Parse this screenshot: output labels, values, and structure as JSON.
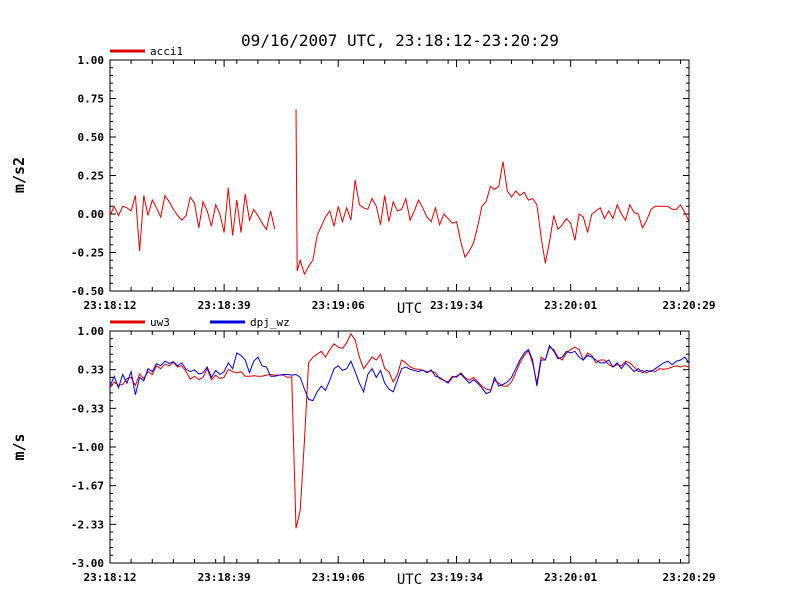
{
  "chart_data": [
    {
      "type": "line",
      "title": "09/16/2007  UTC, 23:18:12-23:20:29",
      "xlabel": "UTC",
      "ylabel": "m/s2",
      "xlim": [
        "23:18:12",
        "23:20:29"
      ],
      "ylim": [
        -0.5,
        1.0
      ],
      "yticks": [
        "1.00",
        "0.75",
        "0.50",
        "0.25",
        "0.00",
        "-0.25",
        "-0.50"
      ],
      "xticks": [
        "23:18:12",
        "23:18:39",
        "23:19:06",
        "23:19:34",
        "23:20:01",
        "23:20:29"
      ],
      "grid": false,
      "legend_position": "top-left",
      "series": [
        {
          "name": "acci1",
          "color": "#e00000",
          "segments": [
            {
              "x": [
                0,
                1,
                2,
                3,
                4,
                5,
                6,
                7,
                8,
                9,
                10,
                11,
                12,
                13,
                14,
                15,
                16,
                17,
                18,
                19,
                20,
                21,
                22,
                23,
                24,
                25,
                26,
                27,
                28,
                29,
                30,
                31,
                32,
                33,
                34,
                35,
                36,
                37,
                38,
                39
              ],
              "y": [
                -0.01,
                0.05,
                -0.01,
                0.05,
                0.04,
                0.02,
                0.12,
                -0.24,
                0.12,
                -0.01,
                0.09,
                0.04,
                -0.02,
                0.12,
                0.08,
                0.03,
                -0.01,
                -0.04,
                -0.01,
                0.11,
                0.07,
                -0.09,
                0.08,
                0.02,
                -0.08,
                0.06,
                0.0,
                -0.12,
                0.17,
                -0.14,
                0.09,
                -0.12,
                0.13,
                -0.04,
                0.03,
                -0.01,
                -0.06,
                -0.1,
                0.02,
                -0.1
              ]
            },
            {
              "x": [
                44,
                44.3,
                45,
                46,
                47,
                48,
                49,
                50,
                51,
                52,
                53,
                54,
                55,
                56,
                57,
                58,
                59,
                60,
                61,
                62,
                63,
                64,
                65,
                66,
                67,
                68,
                69,
                70,
                71,
                72,
                73,
                74,
                75,
                76,
                77,
                78,
                79,
                80,
                81,
                82,
                83,
                84,
                85,
                86,
                87,
                88,
                89,
                90,
                91,
                92,
                93,
                94,
                95,
                96,
                97,
                98,
                99,
                100,
                101,
                102,
                103,
                104,
                105,
                106,
                107,
                108,
                109,
                110,
                111,
                112,
                113,
                114,
                115,
                116,
                117,
                118,
                119,
                120,
                121,
                122,
                123,
                124,
                125,
                126,
                127,
                128,
                129,
                130,
                131,
                132,
                133,
                134,
                135,
                136,
                137
              ],
              "y": [
                0.68,
                -0.37,
                -0.3,
                -0.39,
                -0.34,
                -0.3,
                -0.14,
                -0.08,
                -0.02,
                0.02,
                -0.08,
                0.05,
                -0.05,
                0.04,
                -0.04,
                0.22,
                0.06,
                0.04,
                0.03,
                0.1,
                0.05,
                -0.07,
                0.12,
                -0.05,
                0.08,
                0.02,
                0.03,
                0.1,
                -0.04,
                0.02,
                0.09,
                0.04,
                -0.02,
                -0.05,
                0.04,
                -0.07,
                0.0,
                -0.03,
                -0.06,
                -0.05,
                -0.18,
                -0.28,
                -0.24,
                -0.19,
                -0.08,
                0.05,
                0.08,
                0.18,
                0.16,
                0.18,
                0.34,
                0.15,
                0.11,
                0.15,
                0.12,
                0.14,
                0.09,
                0.1,
                0.06,
                -0.15,
                -0.32,
                -0.18,
                -0.01,
                -0.1,
                -0.07,
                -0.03,
                -0.06,
                -0.17,
                0.0,
                -0.02,
                -0.12,
                0.0,
                0.02,
                0.04,
                -0.03,
                0.02,
                -0.03,
                0.06,
                0.0,
                -0.04,
                0.06,
                0.01,
                0.0,
                -0.09,
                -0.04,
                0.03,
                0.05,
                0.05,
                0.05,
                0.05,
                0.03,
                0.03,
                0.06,
                0.01,
                -0.05
              ]
            }
          ]
        }
      ]
    },
    {
      "type": "line",
      "xlabel": "UTC",
      "ylabel": "m/s",
      "xlim": [
        "23:18:12",
        "23:20:29"
      ],
      "ylim": [
        -3.0,
        1.0
      ],
      "yticks": [
        "1.00",
        "0.33",
        "-0.33",
        "-1.00",
        "-1.67",
        "-2.33",
        "-3.00"
      ],
      "xticks": [
        "23:18:12",
        "23:18:39",
        "23:19:06",
        "23:19:34",
        "23:20:01",
        "23:20:29"
      ],
      "grid": false,
      "legend_position": "top-left",
      "series": [
        {
          "name": "uw3",
          "color": "#e00000",
          "segments": [
            {
              "x": [
                0,
                1,
                2,
                3,
                4,
                5,
                6,
                7,
                8,
                9,
                10,
                11,
                12,
                13,
                14,
                15,
                16,
                17,
                18,
                19,
                20,
                21,
                22,
                23,
                24,
                25,
                26,
                27,
                28,
                29,
                30,
                31,
                32,
                33,
                34,
                35,
                36,
                37,
                38,
                39,
                40,
                41,
                42,
                43,
                44,
                45,
                46,
                47,
                48,
                49,
                50,
                51,
                52,
                53,
                54,
                55,
                56,
                57,
                58,
                59,
                60,
                61,
                62,
                63,
                64,
                65,
                66,
                67,
                68,
                69,
                70,
                71,
                72,
                73,
                74,
                75,
                76,
                77,
                78,
                79,
                80,
                81,
                82,
                83,
                84,
                85,
                86,
                87,
                88,
                89,
                90,
                91,
                92,
                93,
                94,
                95,
                96,
                97,
                98,
                99,
                100,
                101,
                102,
                103,
                104,
                105,
                106,
                107,
                108,
                109,
                110,
                111,
                112,
                113,
                114,
                115,
                116,
                117,
                118,
                119,
                120,
                121,
                122,
                123,
                124,
                125,
                126,
                127,
                128,
                129,
                130,
                131,
                132,
                133,
                134,
                135,
                136,
                137
              ],
              "y": [
                0.02,
                0.12,
                0.06,
                0.08,
                0.18,
                0.2,
                0.06,
                0.26,
                0.18,
                0.3,
                0.25,
                0.4,
                0.35,
                0.43,
                0.4,
                0.46,
                0.38,
                0.4,
                0.3,
                0.17,
                0.22,
                0.16,
                0.2,
                0.35,
                0.16,
                0.24,
                0.18,
                0.2,
                0.34,
                0.3,
                0.28,
                0.3,
                0.22,
                0.22,
                0.23,
                0.22,
                0.22,
                0.24,
                0.25,
                0.24,
                0.24,
                0.24,
                0.2,
                0.21,
                -2.4,
                -2.1,
                -0.9,
                0.45,
                0.55,
                0.6,
                0.65,
                0.55,
                0.68,
                0.78,
                0.72,
                0.7,
                0.8,
                0.95,
                0.85,
                0.55,
                0.35,
                0.45,
                0.55,
                0.5,
                0.6,
                0.35,
                0.3,
                0.12,
                0.25,
                0.5,
                0.45,
                0.38,
                0.35,
                0.34,
                0.32,
                0.3,
                0.31,
                0.28,
                0.18,
                0.15,
                0.12,
                0.22,
                0.2,
                0.28,
                0.2,
                0.15,
                0.2,
                0.13,
                0.05,
                0.0,
                -0.02,
                0.15,
                0.1,
                0.05,
                0.05,
                0.12,
                0.28,
                0.45,
                0.58,
                0.66,
                0.45,
                0.1,
                0.55,
                0.5,
                0.72,
                0.68,
                0.55,
                0.5,
                0.62,
                0.68,
                0.72,
                0.68,
                0.5,
                0.62,
                0.58,
                0.45,
                0.5,
                0.5,
                0.42,
                0.38,
                0.42,
                0.4,
                0.48,
                0.45,
                0.38,
                0.3,
                0.32,
                0.28,
                0.32,
                0.3,
                0.35,
                0.34,
                0.35,
                0.38,
                0.4,
                0.38,
                0.4,
                0.38
              ]
            }
          ]
        },
        {
          "name": "dpj_wz",
          "color": "#0000e0",
          "segments": [
            {
              "x": [
                0,
                1,
                2,
                3,
                4,
                5,
                6,
                7,
                8,
                9,
                10,
                11,
                12,
                13,
                14,
                15,
                16,
                17,
                18,
                19,
                20,
                21,
                22,
                23,
                24,
                25,
                26,
                27,
                28,
                29,
                30,
                31,
                32,
                33,
                34,
                35,
                36,
                37,
                38,
                39,
                40,
                41,
                42,
                43,
                44,
                45,
                46,
                47,
                48,
                49,
                50,
                51,
                52,
                53,
                54,
                55,
                56,
                57,
                58,
                59,
                60,
                61,
                62,
                63,
                64,
                65,
                66,
                67,
                68,
                69,
                70,
                71,
                72,
                73,
                74,
                75,
                76,
                77,
                78,
                79,
                80,
                81,
                82,
                83,
                84,
                85,
                86,
                87,
                88,
                89,
                90,
                91,
                92,
                93,
                94,
                95,
                96,
                97,
                98,
                99,
                100,
                101,
                102,
                103,
                104,
                105,
                106,
                107,
                108,
                109,
                110,
                111,
                112,
                113,
                114,
                115,
                116,
                117,
                118,
                119,
                120,
                121,
                122,
                123,
                124,
                125,
                126,
                127,
                128,
                129,
                130,
                131,
                132,
                133,
                134,
                135,
                136,
                137
              ],
              "y": [
                0.05,
                0.22,
                0.02,
                0.25,
                0.1,
                0.3,
                -0.1,
                0.2,
                0.14,
                0.35,
                0.3,
                0.44,
                0.4,
                0.48,
                0.44,
                0.47,
                0.4,
                0.45,
                0.34,
                0.3,
                0.33,
                0.26,
                0.28,
                0.38,
                0.2,
                0.32,
                0.25,
                0.3,
                0.45,
                0.35,
                0.62,
                0.58,
                0.5,
                0.28,
                0.48,
                0.55,
                0.4,
                0.38,
                0.22,
                0.22,
                0.24,
                0.25,
                0.25,
                0.24,
                0.25,
                0.2,
                0.0,
                -0.18,
                -0.2,
                -0.05,
                0.05,
                -0.02,
                0.15,
                0.35,
                0.4,
                0.32,
                0.35,
                0.48,
                0.3,
                0.1,
                -0.05,
                0.25,
                0.35,
                0.2,
                0.32,
                0.1,
                0.0,
                -0.05,
                0.15,
                0.35,
                0.38,
                0.34,
                0.32,
                0.3,
                0.33,
                0.28,
                0.33,
                0.22,
                0.2,
                0.15,
                0.1,
                0.2,
                0.22,
                0.26,
                0.18,
                0.1,
                0.16,
                0.1,
                0.02,
                -0.08,
                -0.05,
                0.2,
                0.05,
                0.08,
                0.12,
                0.2,
                0.35,
                0.5,
                0.62,
                0.68,
                0.5,
                0.05,
                0.5,
                0.5,
                0.75,
                0.65,
                0.52,
                0.55,
                0.65,
                0.62,
                0.65,
                0.55,
                0.5,
                0.58,
                0.55,
                0.5,
                0.45,
                0.45,
                0.5,
                0.38,
                0.45,
                0.35,
                0.45,
                0.38,
                0.3,
                0.35,
                0.28,
                0.32,
                0.3,
                0.35,
                0.4,
                0.45,
                0.48,
                0.42,
                0.48,
                0.5,
                0.55,
                0.45
              ]
            }
          ]
        }
      ]
    }
  ]
}
